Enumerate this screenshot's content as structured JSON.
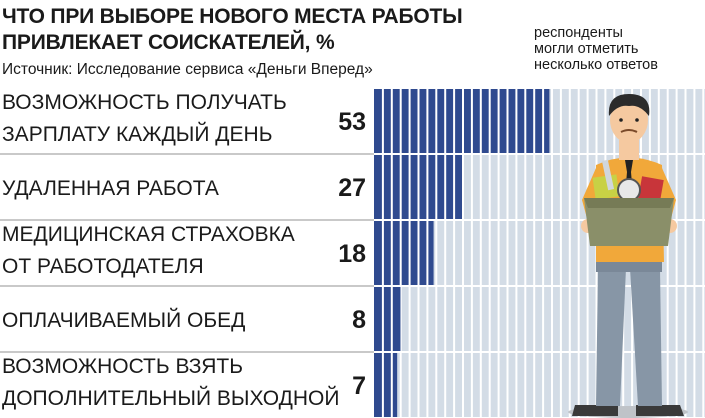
{
  "title_lines": [
    "ЧТО ПРИ ВЫБОРЕ НОВОГО МЕСТА РАБОТЫ",
    "ПРИВЛЕКАЕТ СОИСКАТЕЛЕЙ, %"
  ],
  "source": "Источник: Исследование сервиса «Деньги Вперед»",
  "note_lines": [
    "респонденты",
    "могли отметить",
    "несколько ответов"
  ],
  "colors": {
    "bar": "#2f4a8f",
    "track": "#d3dce6",
    "divider": "#c9c9c9",
    "text": "#1a1a1a",
    "skin": "#f5c9a0",
    "shirt": "#f1a83a",
    "pants": "#8796a6",
    "box": "#8a8f69",
    "hair": "#2b2b2b"
  },
  "illustration": {
    "icon": "office-worker-carrying-box"
  },
  "chart_data": {
    "type": "bar",
    "orientation": "horizontal",
    "unit": "%",
    "categories": [
      [
        "ВОЗМОЖНОСТЬ ПОЛУЧАТЬ",
        "ЗАРПЛАТУ КАЖДЫЙ ДЕНЬ"
      ],
      [
        "УДАЛЕННАЯ РАБОТА"
      ],
      [
        "МЕДИЦИНСКАЯ СТРАХОВКА",
        "ОТ РАБОТОДАТЕЛЯ"
      ],
      [
        "ОПЛАЧИВАЕМЫЙ ОБЕД"
      ],
      [
        "ВОЗМОЖНОСТЬ ВЗЯТЬ",
        "ДОПОЛНИТЕЛЬНЫЙ ВЫХОДНОЙ"
      ]
    ],
    "values": [
      53,
      27,
      18,
      8,
      7
    ],
    "value_labels": [
      "53",
      "27",
      "18",
      "8",
      "7"
    ],
    "xlim": [
      0,
      100
    ],
    "grid": false,
    "legend": "none"
  }
}
